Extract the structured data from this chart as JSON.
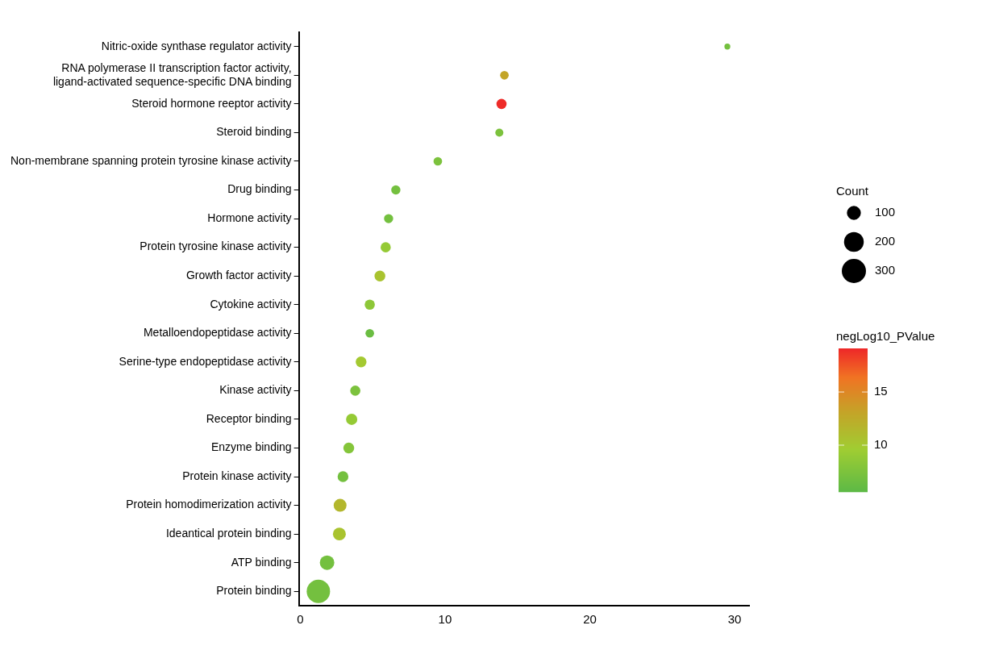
{
  "chart_data": {
    "type": "bubble",
    "orientation": "horizontal",
    "categories": [
      "Nitric-oxide synthase regulator activity",
      "RNA polymerase II transcription factor activity,\nligand-activated sequence-specific DNA binding",
      "Steroid hormone reeptor activity",
      "Steroid binding",
      "Non-membrane spanning protein tyrosine kinase activity",
      "Drug binding",
      "Hormone activity",
      "Protein tyrosine kinase activity",
      "Growth factor activity",
      "Cytokine activity",
      "Metalloendopeptidase activity",
      "Serine-type endopeptidase activity",
      "Kinase activity",
      "Receptor binding",
      "Enzyme binding",
      "Protein kinase activity",
      "Protein homodimerization activity",
      "Ideantical protein binding",
      "ATP binding",
      "Protein binding"
    ],
    "values": [
      29.5,
      14.1,
      13.9,
      13.75,
      9.5,
      6.6,
      6.1,
      5.9,
      5.5,
      4.8,
      4.8,
      4.2,
      3.8,
      3.55,
      3.35,
      2.95,
      2.75,
      2.7,
      1.85,
      1.25
    ],
    "sizes": [
      18,
      38,
      53,
      33,
      38,
      43,
      43,
      53,
      60,
      53,
      38,
      60,
      53,
      65,
      60,
      60,
      85,
      85,
      108,
      280
    ],
    "cvalues": [
      7,
      13,
      19,
      7.5,
      7.5,
      7,
      7,
      9,
      10.5,
      8.5,
      6.5,
      10,
      7.5,
      9,
      8,
      7,
      11.5,
      10.5,
      7,
      7
    ],
    "clim": [
      5.6,
      19.1
    ],
    "cticks": [
      10,
      15
    ],
    "clabel": "negLog10_PValue",
    "size_legend": [
      100,
      200,
      300
    ],
    "legend_title": "Count",
    "xlim": [
      -0.1,
      31
    ],
    "xticks": [
      0,
      10,
      20,
      30
    ],
    "grid": false
  }
}
